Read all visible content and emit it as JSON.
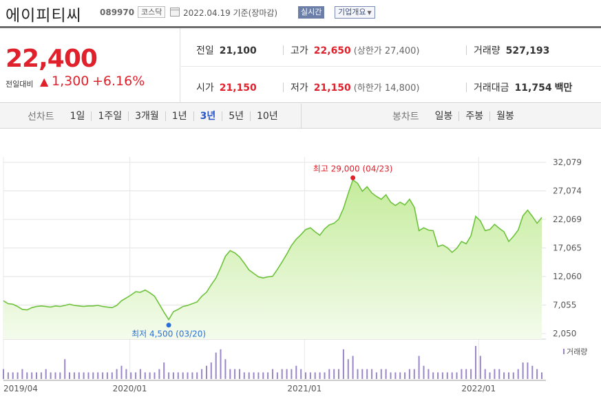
{
  "header": {
    "name": "에이피티씨",
    "code": "089970",
    "market": "코스닥",
    "date": "2022.04.19",
    "date_suffix": "기준(장마감)",
    "realtime_label": "실시간",
    "company_label": "기업개요"
  },
  "price": {
    "current": "22,400",
    "change_label": "전일대비",
    "change_arrow": "▲",
    "change_value": "1,300",
    "change_pct": "+6.16%"
  },
  "summary": {
    "prev_label": "전일",
    "prev": "21,100",
    "high_label": "고가",
    "high": "22,650",
    "upper_label": "(상한가",
    "upper": "27,400)",
    "volume_label": "거래량",
    "volume": "527,193",
    "open_label": "시가",
    "open": "21,150",
    "low_label": "저가",
    "low": "21,150",
    "lower_label": "(하한가",
    "lower": "14,800)",
    "amount_label": "거래대금",
    "amount": "11,754",
    "amount_unit": "백만"
  },
  "tabs": {
    "line_label": "선차트",
    "line_items": [
      "1일",
      "1주일",
      "3개월",
      "1년",
      "3년",
      "5년",
      "10년"
    ],
    "line_active": "3년",
    "candle_label": "봉차트",
    "candle_items": [
      "일봉",
      "주봉",
      "월봉"
    ]
  },
  "colors": {
    "up": "#e0202b",
    "line": "#6cc23a",
    "area_top": "#c5ec9c",
    "area_bottom": "#f4fbec",
    "volume": "#9a86c7",
    "active_tab": "#2a55c7"
  },
  "chart_data": {
    "type": "area",
    "title": "",
    "period": "3년",
    "y_ticks": [
      "32,079",
      "27,074",
      "22,069",
      "17,065",
      "12,060",
      "7,055",
      "2,050"
    ],
    "y_tick_values": [
      32079,
      27074,
      22069,
      17065,
      12060,
      7055,
      2050
    ],
    "ylim": [
      2050,
      32079
    ],
    "x_ticks": [
      "2019/04",
      "2020/01",
      "2021/01",
      "2022/01"
    ],
    "x_tick_positions": [
      0,
      0.233,
      0.555,
      0.876
    ],
    "high_label": "최고 29,000 (04/23)",
    "high_value": 29000,
    "low_label": "최저 4,500 (03/20)",
    "low_value": 4500,
    "volume_legend": "거래량",
    "grid": "horizontal",
    "series": [
      {
        "values": [
          7800,
          7300,
          7200,
          6800,
          6300,
          6200,
          6600,
          6800,
          6900,
          6800,
          6700,
          6900,
          6800,
          7000,
          7200,
          7000,
          6900,
          6800,
          6900,
          6900,
          7000,
          6800,
          6700,
          6600,
          7000,
          7800,
          8300,
          8800,
          9400,
          9300,
          9700,
          9200,
          8600,
          7200,
          5800,
          4500,
          5900,
          6300,
          6800,
          7000,
          7300,
          7600,
          8600,
          9300,
          10600,
          11800,
          13600,
          15600,
          16600,
          16200,
          15500,
          14400,
          13200,
          12600,
          12000,
          11800,
          12000,
          12100,
          13300,
          14600,
          16000,
          17500,
          18600,
          19400,
          20300,
          20600,
          19900,
          19300,
          20400,
          21100,
          21400,
          22100,
          24000,
          26600,
          29000,
          28400,
          27000,
          27800,
          26700,
          26100,
          25600,
          26400,
          25100,
          24500,
          25100,
          24600,
          25600,
          24200,
          20100,
          20600,
          20200,
          20100,
          17300,
          17600,
          17100,
          16300,
          17000,
          18200,
          17800,
          19200,
          22600,
          21800,
          20100,
          20300,
          21200,
          20500,
          19900,
          18200,
          19100,
          20200,
          22700,
          23700,
          22600,
          21400,
          22400
        ],
        "volume": [
          3,
          2,
          2,
          2,
          3,
          2,
          2,
          2,
          2,
          3,
          2,
          2,
          2,
          6,
          2,
          2,
          2,
          2,
          2,
          2,
          2,
          2,
          2,
          2,
          3,
          4,
          3,
          2,
          2,
          3,
          2,
          2,
          2,
          3,
          5,
          2,
          2,
          2,
          2,
          2,
          2,
          2,
          3,
          4,
          5,
          8,
          9,
          6,
          3,
          3,
          3,
          2,
          2,
          2,
          2,
          2,
          2,
          3,
          2,
          3,
          3,
          3,
          4,
          3,
          2,
          2,
          2,
          2,
          2,
          3,
          3,
          3,
          9,
          6,
          7,
          3,
          3,
          3,
          3,
          2,
          3,
          3,
          2,
          2,
          2,
          2,
          3,
          3,
          7,
          4,
          3,
          2,
          2,
          2,
          2,
          2,
          2,
          3,
          3,
          3,
          10,
          7,
          3,
          2,
          3,
          3,
          2,
          2,
          2,
          3,
          5,
          5,
          4,
          3,
          2
        ]
      }
    ]
  }
}
